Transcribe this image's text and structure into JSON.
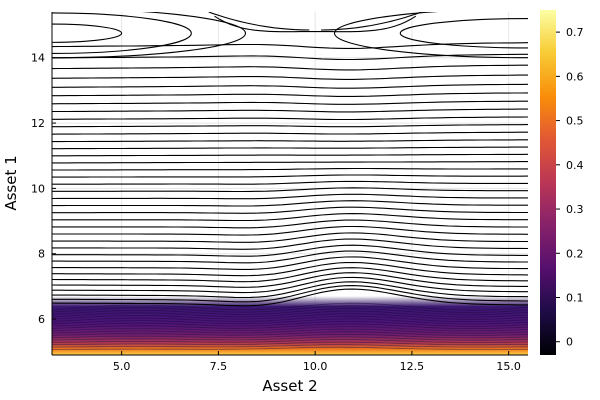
{
  "chart_data": {
    "type": "contour",
    "title": "",
    "xlabel": "Asset 2",
    "ylabel": "Asset 1",
    "xlim": [
      3.2,
      15.5
    ],
    "ylim": [
      4.9,
      15.4
    ],
    "x_ticks": [
      5.0,
      7.5,
      10.0,
      12.5,
      15.0
    ],
    "x_tick_labels": [
      "5.0",
      "7.5",
      "10.0",
      "12.5",
      "15.0"
    ],
    "y_ticks": [
      6,
      8,
      10,
      12,
      14
    ],
    "y_tick_labels": [
      "6",
      "8",
      "10",
      "12",
      "14"
    ],
    "grid": true,
    "colorbar": {
      "colormap": "inferno",
      "range": [
        -0.03,
        0.75
      ],
      "ticks": [
        0.0,
        0.1,
        0.2,
        0.3,
        0.4,
        0.5,
        0.6,
        0.7
      ],
      "tick_labels": [
        "0",
        "0.1",
        "0.2",
        "0.3",
        "0.4",
        "0.5",
        "0.6",
        "0.7"
      ]
    },
    "contour_levels_y_at_x_edge": [
      14.4,
      14.05,
      13.72,
      13.42,
      13.14,
      12.88,
      12.63,
      12.39,
      12.15,
      11.92,
      11.69,
      11.46,
      11.24,
      11.02,
      10.8,
      10.58,
      10.36,
      10.14,
      9.92,
      9.7,
      9.48,
      9.26,
      9.04,
      8.82,
      8.6,
      8.38,
      8.17,
      7.96,
      7.76,
      7.56,
      7.37,
      7.19,
      7.02,
      6.86,
      6.71,
      6.58,
      6.46
    ],
    "saddle_point": {
      "x": 10.0,
      "y": 14.9
    },
    "top_contours": [
      {
        "cx": 3.2,
        "cy": 14.75,
        "rx": 1.8,
        "ry": 0.28
      },
      {
        "cx": 3.2,
        "cy": 14.75,
        "rx": 3.6,
        "ry": 0.62
      },
      {
        "cx": 3.2,
        "cy": 14.75,
        "rx": 5.0,
        "ry": 0.75
      },
      {
        "cx": 15.5,
        "cy": 14.75,
        "rx": 3.3,
        "ry": 0.45
      },
      {
        "cx": 15.5,
        "cy": 14.75,
        "rx": 5.0,
        "ry": 0.75
      }
    ]
  }
}
